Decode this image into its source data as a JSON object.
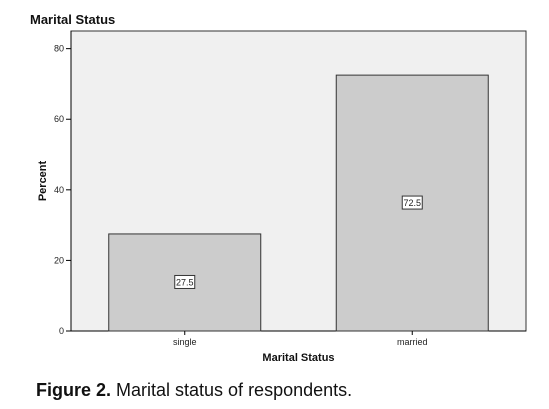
{
  "chart_data": {
    "type": "bar",
    "title": "Marital Status",
    "xlabel": "Marital Status",
    "ylabel": "Percent",
    "categories": [
      "single",
      "married"
    ],
    "values": [
      27.5,
      72.5
    ],
    "data_labels": [
      "27.5",
      "72.5"
    ],
    "ylim": [
      0,
      85
    ],
    "yticks": [
      0,
      20,
      40,
      60,
      80
    ],
    "grid": false,
    "legend": "none",
    "colors": {
      "bar": "#cccccc",
      "plot_bg": "#f0f0f0",
      "stroke": "#333333"
    }
  },
  "caption": {
    "label": "Figure 2.",
    "text": " Marital status of respondents."
  }
}
